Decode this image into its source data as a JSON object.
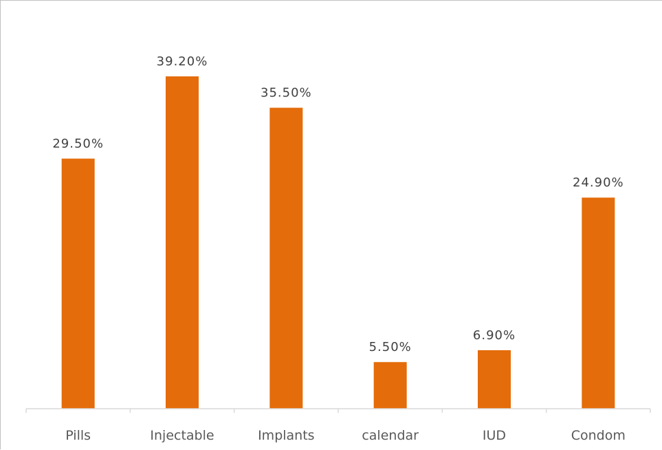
{
  "chart_data": {
    "type": "bar",
    "categories": [
      "Pills",
      "Injectable",
      "Implants",
      "calendar",
      "IUD",
      "Condom"
    ],
    "values": [
      29.5,
      39.2,
      35.5,
      5.5,
      6.9,
      24.9
    ],
    "data_labels": [
      "29.50%",
      "39.20%",
      "35.50%",
      "5.50%",
      "6.90%",
      "24.90%"
    ],
    "title": "",
    "xlabel": "",
    "ylabel": "",
    "ylim": [
      0,
      42
    ],
    "grid": false,
    "legend": "none",
    "bar_color": "#E46C0A"
  }
}
